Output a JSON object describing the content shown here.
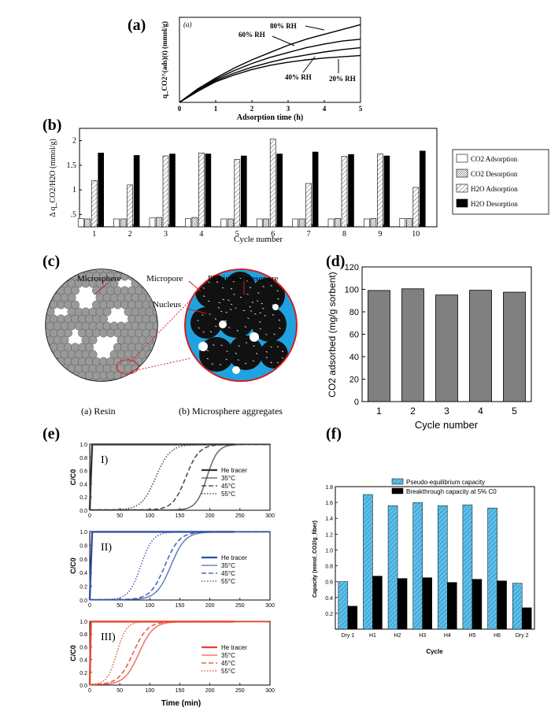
{
  "panels": {
    "a": {
      "label": "(a)",
      "inner_label": "(a)"
    },
    "b": {
      "label": "(b)"
    },
    "c": {
      "label": "(c)",
      "annotations": [
        "Microsphere",
        "Micropore",
        "PEI in the mesopore",
        "Nucleus"
      ],
      "caption_left": "(a) Resin",
      "caption_right": "(b) Microsphere aggregates"
    },
    "d": {
      "label": "(d)"
    },
    "e": {
      "label": "(e)"
    },
    "f": {
      "label": "(f)"
    }
  },
  "chart_data": [
    {
      "id": "a",
      "type": "line",
      "xlabel": "Adsorption time (h)",
      "ylabel": "q_CO2^(ads)(t) (mmol/g)",
      "xlim": [
        0,
        5
      ],
      "xticks": [
        0,
        1,
        2,
        3,
        4,
        5
      ],
      "ylim": [
        0,
        0.7
      ],
      "series": [
        {
          "name": "80% RH",
          "x": [
            0,
            0.5,
            1,
            1.5,
            2,
            2.5,
            3,
            3.5,
            4,
            4.5,
            5
          ],
          "y": [
            0,
            0.11,
            0.2,
            0.28,
            0.35,
            0.41,
            0.47,
            0.52,
            0.56,
            0.6,
            0.64
          ]
        },
        {
          "name": "60% RH",
          "x": [
            0,
            0.5,
            1,
            1.5,
            2,
            2.5,
            3,
            3.5,
            4,
            4.5,
            5
          ],
          "y": [
            0,
            0.1,
            0.19,
            0.26,
            0.32,
            0.37,
            0.41,
            0.45,
            0.48,
            0.505,
            0.52
          ]
        },
        {
          "name": "40% RH",
          "x": [
            0,
            0.5,
            1,
            1.5,
            2,
            2.5,
            3,
            3.5,
            4,
            4.5,
            5
          ],
          "y": [
            0,
            0.1,
            0.18,
            0.24,
            0.29,
            0.33,
            0.365,
            0.39,
            0.415,
            0.435,
            0.45
          ]
        },
        {
          "name": "20% RH",
          "x": [
            0,
            0.5,
            1,
            1.5,
            2,
            2.5,
            3,
            3.5,
            4,
            4.5,
            5
          ],
          "y": [
            0,
            0.09,
            0.17,
            0.225,
            0.27,
            0.305,
            0.33,
            0.35,
            0.365,
            0.375,
            0.385
          ]
        }
      ],
      "legend": "inline labels"
    },
    {
      "id": "b",
      "type": "bar",
      "xlabel": "Cycle number",
      "ylabel": "Δ q_CO2/H2O (mmol/g)",
      "categories": [
        "1",
        "2",
        "3",
        "4",
        "5",
        "6",
        "7",
        "8",
        "9",
        "10"
      ],
      "ylim": [
        0.25,
        2.25
      ],
      "yticks": [
        0.5,
        1,
        1.5,
        2
      ],
      "ytick_labels": [
        ".5",
        "1",
        "1.5",
        "2"
      ],
      "series": [
        {
          "name": "CO2 Adsorption",
          "values": [
            0.42,
            0.41,
            0.43,
            0.42,
            0.41,
            0.41,
            0.41,
            0.41,
            0.41,
            0.42
          ]
        },
        {
          "name": "CO2 Desorption",
          "values": [
            0.41,
            0.41,
            0.44,
            0.44,
            0.41,
            0.41,
            0.41,
            0.42,
            0.42,
            0.42
          ]
        },
        {
          "name": "H2O Adsorption",
          "values": [
            1.19,
            1.1,
            1.69,
            1.75,
            1.62,
            2.03,
            1.13,
            1.68,
            1.73,
            1.05
          ]
        },
        {
          "name": "H2O Desorption",
          "values": [
            1.75,
            1.7,
            1.73,
            1.73,
            1.69,
            1.73,
            1.77,
            1.72,
            1.69,
            1.79
          ]
        }
      ],
      "legend": "right"
    },
    {
      "id": "d",
      "type": "bar",
      "xlabel": "Cycle number",
      "ylabel": "CO2 adsorbed (mg/g sorbent)",
      "categories": [
        "1",
        "2",
        "3",
        "4",
        "5"
      ],
      "values": [
        99,
        100.5,
        95,
        99.2,
        97.5
      ],
      "ylim": [
        0,
        120
      ],
      "yticks": [
        0,
        20,
        40,
        60,
        80,
        100,
        120
      ]
    },
    {
      "id": "e",
      "type": "line",
      "xlabel": "Time (min)",
      "ylabel": "C/C0",
      "subplots": [
        {
          "tag": "I)",
          "color": "#333333",
          "xlim": [
            0,
            300
          ],
          "ylim": [
            0,
            1
          ],
          "series": [
            {
              "name": "He tracer",
              "midpoint": 2,
              "width": 0.3,
              "style": "solid"
            },
            {
              "name": "35°C",
              "midpoint": 195,
              "width": 9,
              "style": "solid"
            },
            {
              "name": "45°C",
              "midpoint": 160,
              "width": 11,
              "style": "dashed"
            },
            {
              "name": "55°C",
              "midpoint": 110,
              "width": 12,
              "style": "dotted"
            }
          ]
        },
        {
          "tag": "II)",
          "color": "#2e4fa3",
          "xlim": [
            0,
            300
          ],
          "ylim": [
            0,
            1
          ],
          "series": [
            {
              "name": "He tracer",
              "midpoint": 2,
              "width": 0.3,
              "style": "solid"
            },
            {
              "name": "35°C",
              "midpoint": 135,
              "width": 12,
              "style": "solid"
            },
            {
              "name": "45°C",
              "midpoint": 125,
              "width": 12,
              "style": "dashed"
            },
            {
              "name": "55°C",
              "midpoint": 85,
              "width": 10,
              "style": "dotted"
            }
          ]
        },
        {
          "tag": "III)",
          "color": "#e8432a",
          "xlim": [
            0,
            300
          ],
          "ylim": [
            0,
            1
          ],
          "series": [
            {
              "name": "He tracer",
              "midpoint": 1,
              "width": 0.2,
              "style": "solid"
            },
            {
              "name": "35°C",
              "midpoint": 82,
              "width": 12,
              "style": "solid"
            },
            {
              "name": "45°C",
              "midpoint": 72,
              "width": 12,
              "style": "dashed"
            },
            {
              "name": "55°C",
              "midpoint": 45,
              "width": 8,
              "style": "dotted"
            }
          ]
        }
      ],
      "xticks": [
        0,
        50,
        100,
        150,
        200,
        250,
        300
      ],
      "yticks": [
        0.0,
        0.2,
        0.4,
        0.6,
        0.8,
        1.0
      ]
    },
    {
      "id": "f",
      "type": "bar",
      "xlabel": "Cycle",
      "ylabel": "Capacity (mmol_CO2/g_fiber)",
      "categories": [
        "Dry 1",
        "H1",
        "H2",
        "H3",
        "H4",
        "H5",
        "H6",
        "Dry 2"
      ],
      "ylim": [
        0,
        1.8
      ],
      "yticks": [
        0.2,
        0.4,
        0.6,
        0.8,
        1.0,
        1.2,
        1.4,
        1.6,
        1.8
      ],
      "series": [
        {
          "name": "Pseudo-equilibrium capacity",
          "values": [
            0.6,
            1.7,
            1.56,
            1.6,
            1.56,
            1.57,
            1.53,
            0.58
          ]
        },
        {
          "name": "Breakthrough capacity at 5% C0",
          "values": [
            0.29,
            0.67,
            0.64,
            0.65,
            0.59,
            0.63,
            0.61,
            0.27
          ]
        }
      ],
      "colors": {
        "pseudo": "#5bc0eb",
        "breakthrough": "#000000"
      },
      "legend": "top-right"
    }
  ]
}
